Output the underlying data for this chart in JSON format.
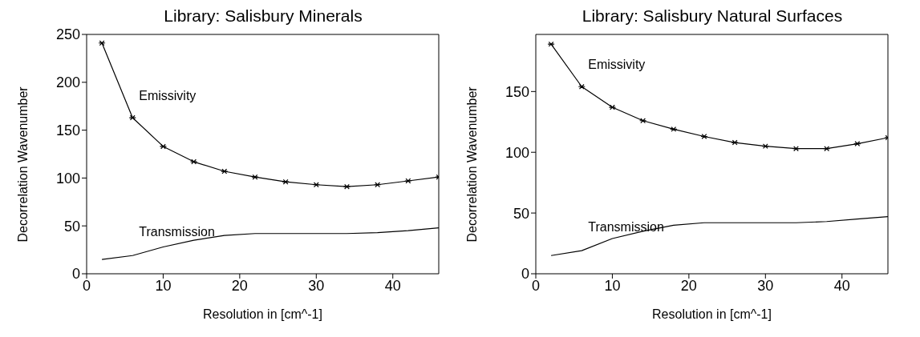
{
  "chart_data": [
    {
      "type": "line",
      "title": "Library: Salisbury Minerals",
      "xlabel": "Resolution in [cm^-1]",
      "ylabel": "Decorrelation Wavenumber",
      "x": [
        2,
        6,
        10,
        14,
        18,
        22,
        26,
        30,
        34,
        38,
        42,
        46
      ],
      "xlim": [
        0,
        46
      ],
      "xticks": [
        0,
        10,
        20,
        30,
        40
      ],
      "ylim": [
        0,
        250
      ],
      "yticks": [
        0,
        50,
        100,
        150,
        200,
        250
      ],
      "grid": false,
      "legend": false,
      "line_style": "solid",
      "series": [
        {
          "name": "Emissivity",
          "color": "#000000",
          "marker": "cross",
          "values": [
            241,
            163,
            133,
            117,
            107,
            101,
            96,
            93,
            91,
            93,
            97,
            101
          ]
        },
        {
          "name": "Transmission",
          "color": "#000000",
          "marker": "none",
          "values": [
            15,
            19,
            28,
            35,
            40,
            42,
            42,
            42,
            42,
            43,
            45,
            48
          ]
        }
      ]
    },
    {
      "type": "line",
      "title": "Library: Salisbury Natural Surfaces",
      "xlabel": "Resolution in [cm^-1]",
      "ylabel": "Decorrelation Wavenumber",
      "x": [
        2,
        6,
        10,
        14,
        18,
        22,
        26,
        30,
        34,
        38,
        42,
        46
      ],
      "xlim": [
        0,
        46
      ],
      "xticks": [
        0,
        10,
        20,
        30,
        40
      ],
      "ylim": [
        0,
        197
      ],
      "yticks": [
        0,
        50,
        100,
        150
      ],
      "grid": false,
      "legend": false,
      "line_style": "solid",
      "series": [
        {
          "name": "Emissivity",
          "color": "#000000",
          "marker": "cross",
          "values": [
            189,
            154,
            137,
            126,
            119,
            113,
            108,
            105,
            103,
            103,
            107,
            112
          ]
        },
        {
          "name": "Transmission",
          "color": "#000000",
          "marker": "none",
          "values": [
            15,
            19,
            29,
            35,
            40,
            42,
            42,
            42,
            42,
            43,
            45,
            47
          ]
        }
      ]
    }
  ]
}
